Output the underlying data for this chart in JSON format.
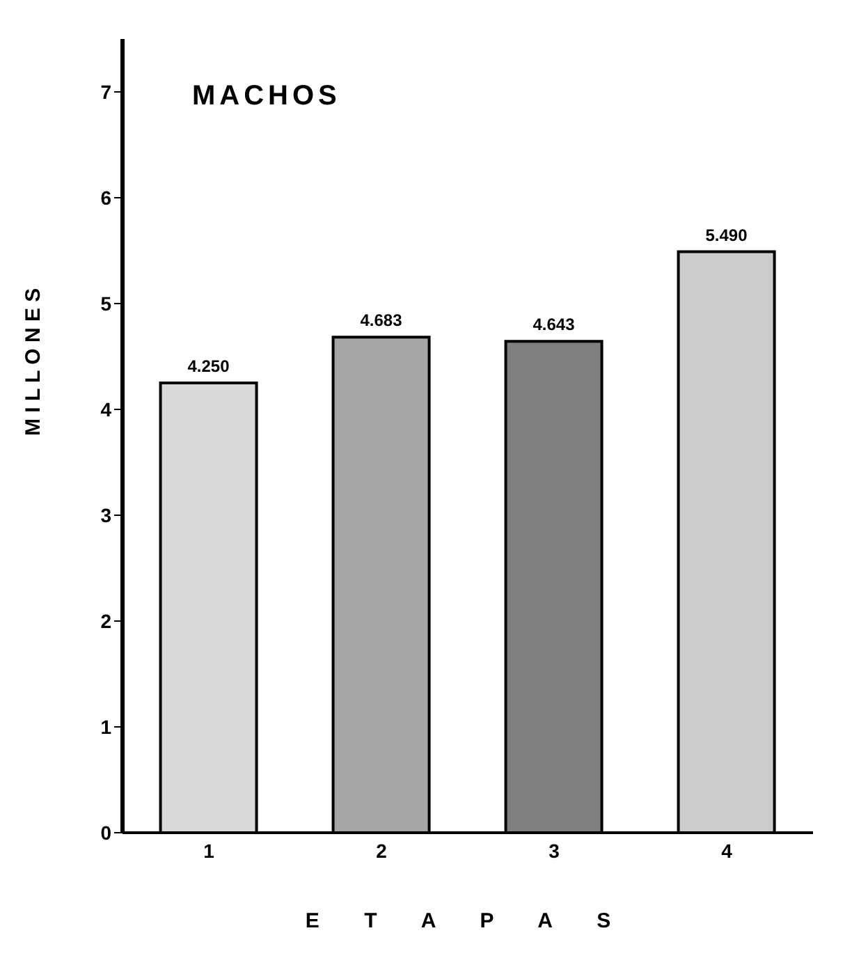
{
  "chart_data": {
    "type": "bar",
    "title": "MACHOS",
    "xlabel": "E T A P A S",
    "ylabel": "M I L L O N E S",
    "categories": [
      "1",
      "2",
      "3",
      "4"
    ],
    "values": [
      4.25,
      4.683,
      4.643,
      5.49
    ],
    "value_labels": [
      "4.250",
      "4.683",
      "4.643",
      "5.490"
    ],
    "colors": [
      "#d9d9d9",
      "#a6a6a6",
      "#7f7f7f",
      "#cccccc"
    ],
    "ylim": [
      0,
      7.5
    ],
    "yticks": [
      0,
      1,
      2,
      3,
      4,
      5,
      6,
      7
    ],
    "grid": false
  }
}
